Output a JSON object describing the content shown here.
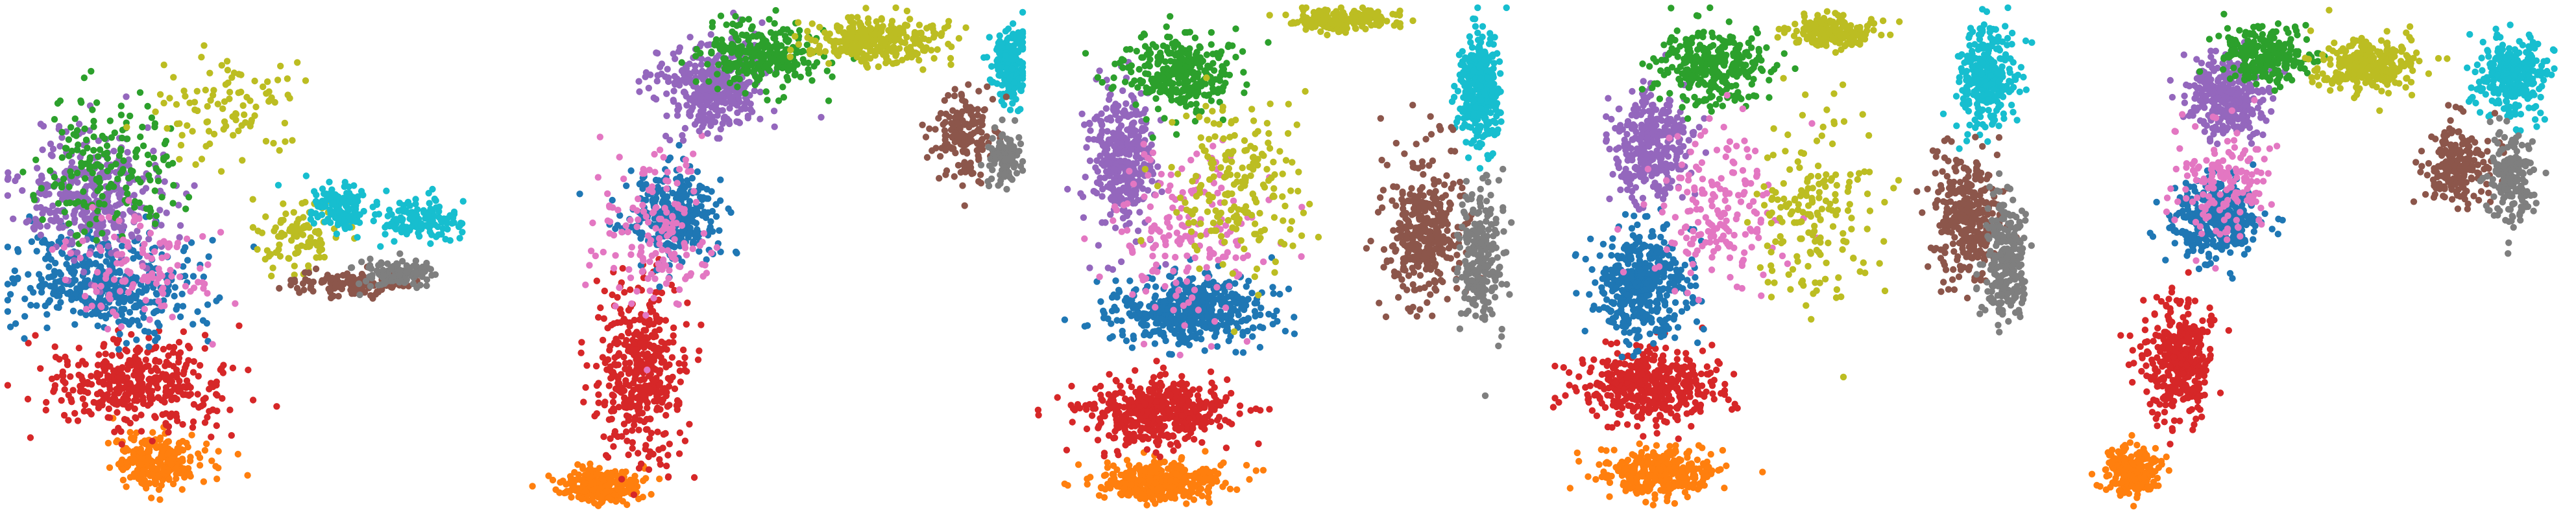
{
  "figure": {
    "panel_count": 5,
    "background": "#ffffff"
  },
  "palette": {
    "orange": "#ff7f0e",
    "red": "#d62728",
    "blue": "#1f77b4",
    "green": "#2ca02c",
    "purple": "#9467bd",
    "pink": "#e377c2",
    "olive": "#bcbd22",
    "cyan": "#17becf",
    "brown": "#8c564b",
    "gray": "#7f7f7f"
  },
  "chart_data": [
    {
      "type": "scatter",
      "axes_visible": false,
      "grid": false,
      "legend": "none",
      "xlim": [
        0,
        1
      ],
      "ylim": [
        0,
        1
      ],
      "series": [
        {
          "color": "orange",
          "n": 260,
          "clusters": [
            [
              0.3,
              0.1,
              0.08,
              0.05
            ]
          ]
        },
        {
          "color": "red",
          "n": 380,
          "clusters": [
            [
              0.26,
              0.25,
              0.16,
              0.08
            ]
          ]
        },
        {
          "color": "blue",
          "n": 420,
          "clusters": [
            [
              0.2,
              0.45,
              0.17,
              0.09
            ]
          ]
        },
        {
          "color": "purple",
          "n": 360,
          "clusters": [
            [
              0.18,
              0.62,
              0.13,
              0.12
            ]
          ]
        },
        {
          "color": "green",
          "n": 180,
          "clusters": [
            [
              0.2,
              0.68,
              0.12,
              0.12
            ]
          ]
        },
        {
          "color": "pink",
          "n": 120,
          "clusters": [
            [
              0.26,
              0.48,
              0.13,
              0.1
            ]
          ]
        },
        {
          "color": "olive",
          "n": 200,
          "clusters": [
            [
              0.45,
              0.8,
              0.14,
              0.1
            ],
            [
              0.58,
              0.54,
              0.08,
              0.06
            ]
          ]
        },
        {
          "color": "cyan",
          "n": 260,
          "clusters": [
            [
              0.82,
              0.58,
              0.08,
              0.04
            ],
            [
              0.66,
              0.6,
              0.06,
              0.04
            ]
          ]
        },
        {
          "color": "brown",
          "n": 140,
          "clusters": [
            [
              0.68,
              0.45,
              0.1,
              0.02
            ]
          ]
        },
        {
          "color": "gray",
          "n": 110,
          "clusters": [
            [
              0.78,
              0.47,
              0.07,
              0.025
            ]
          ]
        }
      ]
    },
    {
      "type": "scatter",
      "axes_visible": false,
      "grid": false,
      "legend": "none",
      "xlim": [
        0,
        1
      ],
      "ylim": [
        0,
        1
      ],
      "series": [
        {
          "color": "orange",
          "n": 240,
          "clusters": [
            [
              0.16,
              0.05,
              0.07,
              0.03
            ]
          ]
        },
        {
          "color": "red",
          "n": 420,
          "clusters": [
            [
              0.24,
              0.28,
              0.08,
              0.16
            ]
          ]
        },
        {
          "color": "blue",
          "n": 320,
          "clusters": [
            [
              0.3,
              0.58,
              0.08,
              0.08
            ]
          ]
        },
        {
          "color": "pink",
          "n": 160,
          "clusters": [
            [
              0.26,
              0.55,
              0.1,
              0.14
            ]
          ]
        },
        {
          "color": "purple",
          "n": 380,
          "clusters": [
            [
              0.38,
              0.84,
              0.09,
              0.08
            ]
          ]
        },
        {
          "color": "green",
          "n": 280,
          "clusters": [
            [
              0.48,
              0.9,
              0.1,
              0.06
            ]
          ]
        },
        {
          "color": "olive",
          "n": 320,
          "clusters": [
            [
              0.7,
              0.93,
              0.12,
              0.04
            ]
          ]
        },
        {
          "color": "cyan",
          "n": 200,
          "clusters": [
            [
              0.97,
              0.88,
              0.03,
              0.07
            ]
          ]
        },
        {
          "color": "brown",
          "n": 160,
          "clusters": [
            [
              0.88,
              0.74,
              0.06,
              0.08
            ]
          ]
        },
        {
          "color": "gray",
          "n": 110,
          "clusters": [
            [
              0.96,
              0.7,
              0.03,
              0.05
            ]
          ]
        }
      ]
    },
    {
      "type": "scatter",
      "axes_visible": false,
      "grid": false,
      "legend": "none",
      "xlim": [
        0,
        1
      ],
      "ylim": [
        0,
        1
      ],
      "series": [
        {
          "color": "orange",
          "n": 380,
          "clusters": [
            [
              0.25,
              0.06,
              0.11,
              0.035
            ]
          ]
        },
        {
          "color": "red",
          "n": 460,
          "clusters": [
            [
              0.24,
              0.2,
              0.13,
              0.06
            ]
          ]
        },
        {
          "color": "blue",
          "n": 480,
          "clusters": [
            [
              0.3,
              0.4,
              0.14,
              0.06
            ]
          ]
        },
        {
          "color": "purple",
          "n": 360,
          "clusters": [
            [
              0.17,
              0.7,
              0.06,
              0.13
            ]
          ]
        },
        {
          "color": "green",
          "n": 320,
          "clusters": [
            [
              0.28,
              0.86,
              0.1,
              0.07
            ]
          ]
        },
        {
          "color": "pink",
          "n": 180,
          "clusters": [
            [
              0.3,
              0.55,
              0.14,
              0.15
            ]
          ]
        },
        {
          "color": "olive",
          "n": 400,
          "clusters": [
            [
              0.6,
              0.97,
              0.09,
              0.02
            ],
            [
              0.4,
              0.64,
              0.12,
              0.15
            ]
          ]
        },
        {
          "color": "cyan",
          "n": 320,
          "clusters": [
            [
              0.88,
              0.84,
              0.04,
              0.1
            ]
          ]
        },
        {
          "color": "brown",
          "n": 340,
          "clusters": [
            [
              0.77,
              0.55,
              0.07,
              0.14
            ]
          ]
        },
        {
          "color": "gray",
          "n": 240,
          "clusters": [
            [
              0.88,
              0.5,
              0.04,
              0.12
            ]
          ]
        }
      ]
    },
    {
      "type": "scatter",
      "axes_visible": false,
      "grid": false,
      "legend": "none",
      "xlim": [
        0,
        1
      ],
      "ylim": [
        0,
        1
      ],
      "series": [
        {
          "color": "orange",
          "n": 340,
          "clusters": [
            [
              0.22,
              0.08,
              0.1,
              0.04
            ]
          ]
        },
        {
          "color": "red",
          "n": 440,
          "clusters": [
            [
              0.2,
              0.25,
              0.12,
              0.07
            ]
          ]
        },
        {
          "color": "blue",
          "n": 420,
          "clusters": [
            [
              0.18,
              0.45,
              0.08,
              0.1
            ]
          ]
        },
        {
          "color": "purple",
          "n": 320,
          "clusters": [
            [
              0.2,
              0.72,
              0.07,
              0.1
            ]
          ]
        },
        {
          "color": "green",
          "n": 320,
          "clusters": [
            [
              0.32,
              0.88,
              0.1,
              0.07
            ]
          ]
        },
        {
          "color": "pink",
          "n": 180,
          "clusters": [
            [
              0.34,
              0.58,
              0.12,
              0.15
            ]
          ]
        },
        {
          "color": "olive",
          "n": 360,
          "clusters": [
            [
              0.56,
              0.95,
              0.08,
              0.03
            ],
            [
              0.52,
              0.6,
              0.1,
              0.18
            ]
          ]
        },
        {
          "color": "cyan",
          "n": 300,
          "clusters": [
            [
              0.86,
              0.86,
              0.05,
              0.09
            ]
          ]
        },
        {
          "color": "brown",
          "n": 320,
          "clusters": [
            [
              0.82,
              0.58,
              0.06,
              0.12
            ]
          ]
        },
        {
          "color": "gray",
          "n": 260,
          "clusters": [
            [
              0.9,
              0.5,
              0.04,
              0.12
            ]
          ]
        }
      ]
    },
    {
      "type": "scatter",
      "axes_visible": false,
      "grid": false,
      "legend": "none",
      "xlim": [
        0,
        1
      ],
      "ylim": [
        0,
        1
      ],
      "series": [
        {
          "color": "orange",
          "n": 260,
          "clusters": [
            [
              0.13,
              0.08,
              0.05,
              0.04
            ]
          ]
        },
        {
          "color": "red",
          "n": 380,
          "clusters": [
            [
              0.22,
              0.3,
              0.06,
              0.1
            ]
          ]
        },
        {
          "color": "blue",
          "n": 380,
          "clusters": [
            [
              0.3,
              0.58,
              0.08,
              0.07
            ]
          ]
        },
        {
          "color": "purple",
          "n": 340,
          "clusters": [
            [
              0.32,
              0.82,
              0.07,
              0.07
            ]
          ]
        },
        {
          "color": "green",
          "n": 260,
          "clusters": [
            [
              0.4,
              0.9,
              0.08,
              0.05
            ]
          ]
        },
        {
          "color": "pink",
          "n": 160,
          "clusters": [
            [
              0.32,
              0.65,
              0.09,
              0.1
            ]
          ]
        },
        {
          "color": "olive",
          "n": 300,
          "clusters": [
            [
              0.6,
              0.88,
              0.09,
              0.05
            ]
          ]
        },
        {
          "color": "cyan",
          "n": 300,
          "clusters": [
            [
              0.88,
              0.86,
              0.06,
              0.07
            ]
          ]
        },
        {
          "color": "brown",
          "n": 220,
          "clusters": [
            [
              0.78,
              0.68,
              0.06,
              0.07
            ]
          ]
        },
        {
          "color": "gray",
          "n": 180,
          "clusters": [
            [
              0.88,
              0.66,
              0.04,
              0.08
            ]
          ]
        }
      ]
    }
  ]
}
